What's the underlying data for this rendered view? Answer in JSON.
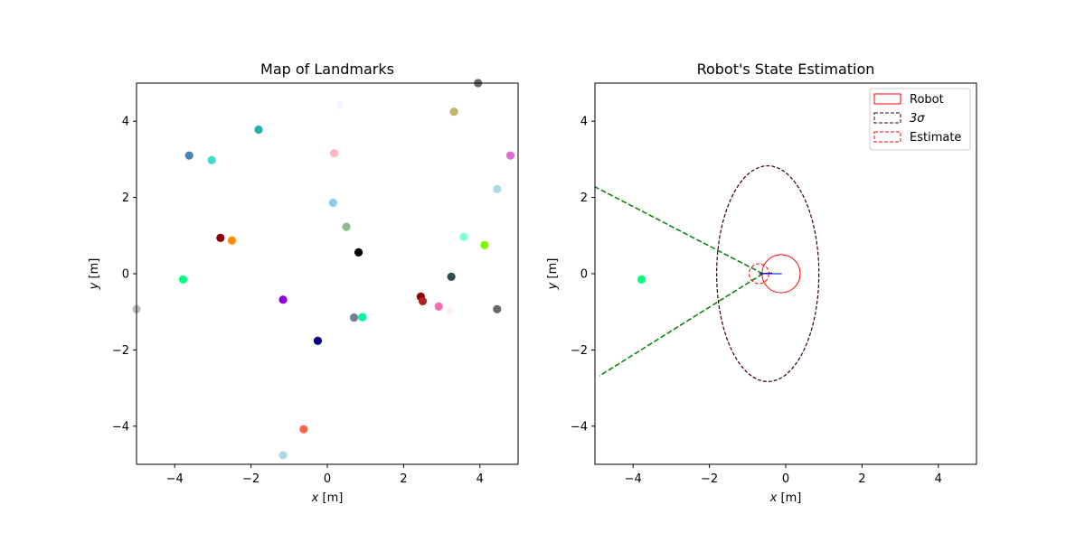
{
  "chart_data": [
    {
      "type": "scatter",
      "title": "Map of Landmarks",
      "xlabel_var": "x",
      "xlabel_unit": " [m]",
      "ylabel_var": "y",
      "ylabel_unit": " [m]",
      "xlim": [
        -5,
        5
      ],
      "ylim": [
        -5,
        5
      ],
      "xticks": [
        -4,
        -2,
        0,
        2,
        4
      ],
      "yticks": [
        -4,
        -2,
        0,
        2,
        4
      ],
      "grid": false,
      "points": [
        {
          "x": -5.0,
          "y": -0.93,
          "color": "#bdbdbd"
        },
        {
          "x": -3.78,
          "y": -0.15,
          "color": "#00ff7f"
        },
        {
          "x": -3.62,
          "y": 3.1,
          "color": "#4682b4"
        },
        {
          "x": -3.03,
          "y": 2.98,
          "color": "#40e0d0"
        },
        {
          "x": -2.8,
          "y": 0.94,
          "color": "#8b0000"
        },
        {
          "x": -2.5,
          "y": 0.87,
          "color": "#ff8c00"
        },
        {
          "x": -1.8,
          "y": 3.78,
          "color": "#20b2aa"
        },
        {
          "x": -1.16,
          "y": -0.68,
          "color": "#9400d3"
        },
        {
          "x": -1.16,
          "y": -4.76,
          "color": "#add8e6"
        },
        {
          "x": -0.62,
          "y": -4.08,
          "color": "#ff6347"
        },
        {
          "x": -0.25,
          "y": -1.76,
          "color": "#000080"
        },
        {
          "x": 0.15,
          "y": 1.86,
          "color": "#87ceeb"
        },
        {
          "x": 0.18,
          "y": 3.16,
          "color": "#ffb6c1"
        },
        {
          "x": 0.33,
          "y": 4.42,
          "color": "#f8f8ff"
        },
        {
          "x": 0.5,
          "y": 1.23,
          "color": "#8fbc8f"
        },
        {
          "x": 0.7,
          "y": -1.15,
          "color": "#708090"
        },
        {
          "x": 0.82,
          "y": 0.56,
          "color": "#000000"
        },
        {
          "x": 0.92,
          "y": -1.14,
          "color": "#00fa9a"
        },
        {
          "x": 2.45,
          "y": -0.6,
          "color": "#8b0000"
        },
        {
          "x": 2.5,
          "y": -0.72,
          "color": "#b22222"
        },
        {
          "x": 2.92,
          "y": -0.86,
          "color": "#ff69b4"
        },
        {
          "x": 3.2,
          "y": -0.97,
          "color": "#fff0f5"
        },
        {
          "x": 3.25,
          "y": -0.08,
          "color": "#2f4f4f"
        },
        {
          "x": 3.32,
          "y": 4.25,
          "color": "#bdb76b"
        },
        {
          "x": 3.58,
          "y": 0.97,
          "color": "#7fffd4"
        },
        {
          "x": 3.95,
          "y": 5.0,
          "color": "#696969"
        },
        {
          "x": 4.12,
          "y": 0.75,
          "color": "#7cfc00"
        },
        {
          "x": 4.45,
          "y": 2.22,
          "color": "#add8e6"
        },
        {
          "x": 4.45,
          "y": -0.93,
          "color": "#696969"
        },
        {
          "x": 4.8,
          "y": 3.1,
          "color": "#da70d6"
        }
      ]
    },
    {
      "type": "scatter",
      "title": "Robot's State Estimation",
      "xlabel_var": "x",
      "xlabel_unit": " [m]",
      "ylabel_var": "y",
      "ylabel_unit": " [m]",
      "xlim": [
        -5,
        5
      ],
      "ylim": [
        -5,
        5
      ],
      "xticks": [
        -4,
        -2,
        0,
        2,
        4
      ],
      "yticks": [
        -4,
        -2,
        0,
        2,
        4
      ],
      "grid": false,
      "legend_position": "top-right",
      "legend": [
        {
          "label": "Robot",
          "style": "solid",
          "color": "#ff0000"
        },
        {
          "label": "3σ",
          "style": "dashed",
          "color": "#3b0000"
        },
        {
          "label": "Estimate",
          "style": "dashed",
          "color": "#ff0000"
        }
      ],
      "robot": {
        "x": -0.12,
        "y": 0.0,
        "radius": 0.5,
        "heading_to": {
          "x": -0.1,
          "y": 0.0
        }
      },
      "estimate": {
        "x": -0.7,
        "y": 0.0,
        "radius": 0.26,
        "heading_to": {
          "x": -0.35,
          "y": 0.02
        }
      },
      "uncertainty_ellipse": {
        "cx": -0.47,
        "cy": 0.0,
        "rx": 1.34,
        "ry": 2.83,
        "color": "#3b0000"
      },
      "sensor_rays": [
        {
          "x1": -0.6,
          "y1": 0.0,
          "x2": -5.0,
          "y2": 2.28
        },
        {
          "x1": -0.6,
          "y1": 0.0,
          "x2": -4.88,
          "y2": -2.68
        }
      ],
      "ray_color": "#008000",
      "heading_color": "#0000cd",
      "points": [
        {
          "x": -3.78,
          "y": -0.15,
          "color": "#00ff7f"
        }
      ]
    }
  ]
}
